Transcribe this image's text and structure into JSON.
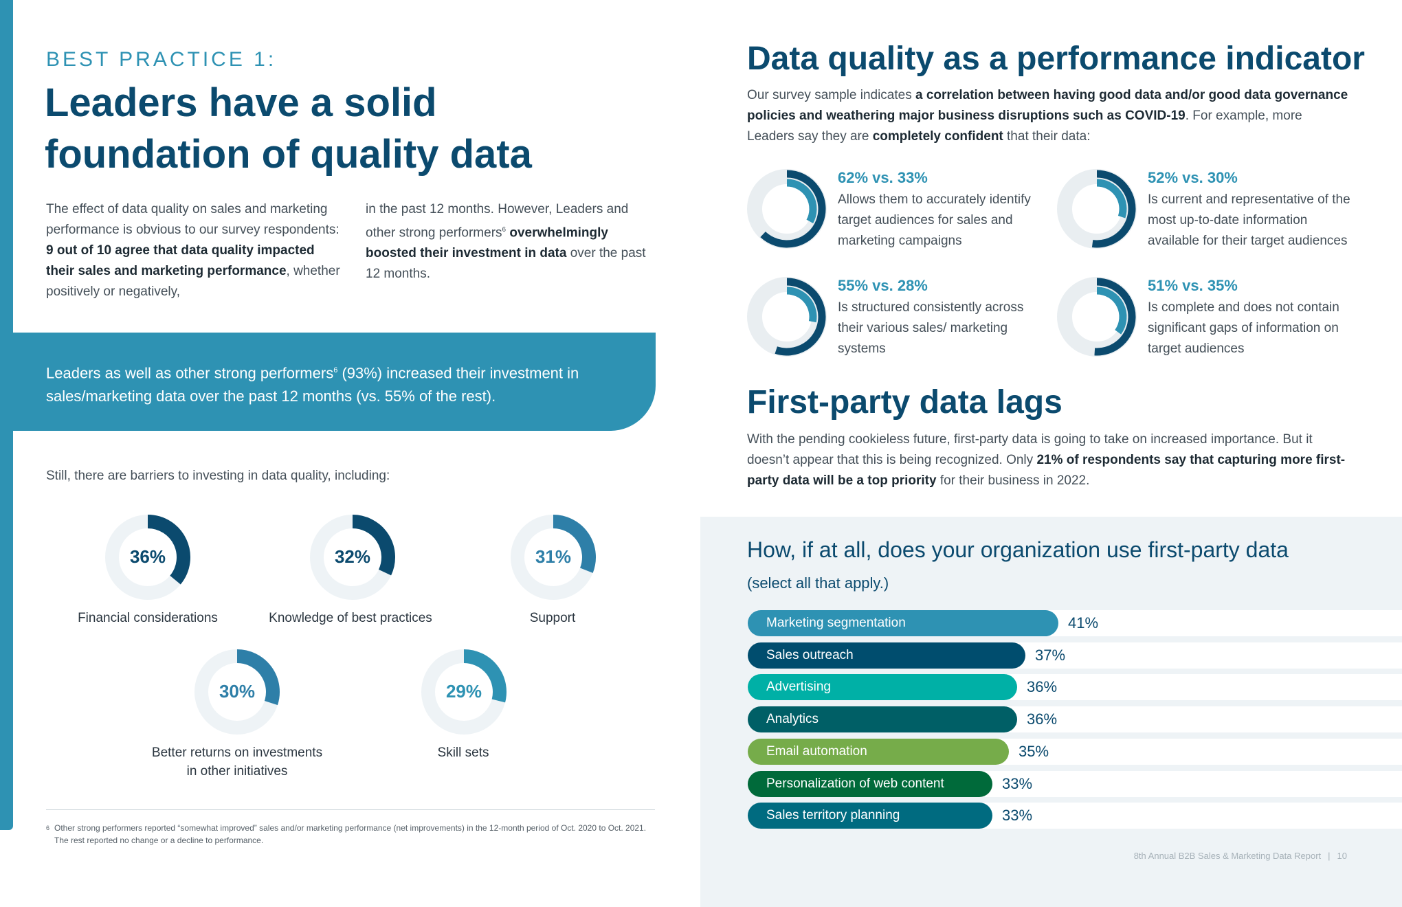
{
  "left": {
    "kicker": "BEST PRACTICE 1:",
    "headline_line1": "Leaders have a solid",
    "headline_line2": "foundation of quality data",
    "intro_a": {
      "t1": "The effect of data quality on sales and marketing performance is obvious to our survey respondents: ",
      "b1": "9 out of 10 agree that data quality impacted their sales and marketing performance",
      "t2": ", whether positively or negatively,"
    },
    "intro_b": {
      "t1": "in the past 12 months. However, Leaders and other strong performers",
      "sup": "6",
      "t2": " ",
      "b1": "overwhelmingly boosted their investment in data",
      "t3": " over the past 12 months."
    },
    "callout": {
      "t1": "Leaders as well as other strong performers",
      "sup": "6",
      "t2": " (93%) increased their investment in sales/marketing data over the past 12 months (vs. 55% of the rest)."
    },
    "barriers_intro": "Still, there are barriers to investing in data quality, including:",
    "barriers": [
      {
        "pct_label": "36%",
        "value": 36,
        "label_line1": "Financial considerations",
        "label_line2": "",
        "color": "#0b4a6e"
      },
      {
        "pct_label": "32%",
        "value": 32,
        "label_line1": "Knowledge of best practices",
        "label_line2": "",
        "color": "#0b4a6e"
      },
      {
        "pct_label": "31%",
        "value": 31,
        "label_line1": "Support",
        "label_line2": "",
        "color": "#2e7fa8"
      },
      {
        "pct_label": "30%",
        "value": 30,
        "label_line1": "Better returns on investments",
        "label_line2": "in other initiatives",
        "color": "#2e7fa8"
      },
      {
        "pct_label": "29%",
        "value": 29,
        "label_line1": "Skill sets",
        "label_line2": "",
        "color": "#2e92b3"
      }
    ],
    "footnote_mark": "6",
    "footnote": "Other strong performers reported “somewhat improved” sales and/or marketing performance (net improvements) in the 12-month period of Oct. 2020 to Oct. 2021. The rest reported no change or a decline to performance."
  },
  "right": {
    "title1": "Data quality as a performance indicator",
    "para1": {
      "t1": "Our survey sample indicates ",
      "b1": "a correlation between having good data and/or good data governance policies and weathering major business disruptions such as COVID-19",
      "t2": ". For example, more Leaders say they are ",
      "b2": "completely confident",
      "t3": " that their data:"
    },
    "stats": [
      {
        "head": "62% vs. 33%",
        "leaders": 62,
        "rest": 33,
        "text": "Allows them to accurately identify target audiences for sales and marketing campaigns"
      },
      {
        "head": "52% vs. 30%",
        "leaders": 52,
        "rest": 30,
        "text": "Is current and representative of the most up-to-date information available for their target audiences"
      },
      {
        "head": "55% vs. 28%",
        "leaders": 55,
        "rest": 28,
        "text": "Is structured consistently across their various sales/ marketing systems"
      },
      {
        "head": "51% vs. 35%",
        "leaders": 51,
        "rest": 35,
        "text": "Is complete and does not contain significant gaps of information on target audiences"
      }
    ],
    "title2": "First-party data lags",
    "para2": {
      "t1": "With the pending cookieless future, first-party data is going to take on increased importance. But it doesn’t appear that this is being recognized. Only ",
      "b1": "21% of respondents say that capturing more first-party data will be a top priority",
      "t2": " for their business in 2022."
    },
    "question_title": "How, if at all, does your organization use first-party data",
    "question_sub": "(select all that apply.)"
  },
  "chart_data": {
    "type": "bar",
    "orientation": "horizontal",
    "title": "How, if at all, does your organization use first-party data",
    "subtitle": "(select all that apply.)",
    "categories": [
      "Marketing segmentation",
      "Sales outreach",
      "Advertising",
      "Analytics",
      "Email automation",
      "Personalization of web content",
      "Sales territory planning"
    ],
    "values": [
      41,
      37,
      36,
      36,
      35,
      33,
      33
    ],
    "value_labels": [
      "41%",
      "37%",
      "36%",
      "36%",
      "35%",
      "33%",
      "33%"
    ],
    "colors": [
      "#2e92b3",
      "#004d6e",
      "#00b0a6",
      "#005f66",
      "#76ac4a",
      "#006a3a",
      "#006b80"
    ],
    "xlim": [
      0,
      100
    ],
    "grid": false
  },
  "footer": {
    "report": "8th Annual B2B Sales & Marketing Data Report",
    "separator": "|",
    "page": "10"
  },
  "colors": {
    "accent": "#2e92b3",
    "navy": "#0b4a6e",
    "panel": "#eef3f6",
    "ring_bg": "#eef3f6"
  }
}
